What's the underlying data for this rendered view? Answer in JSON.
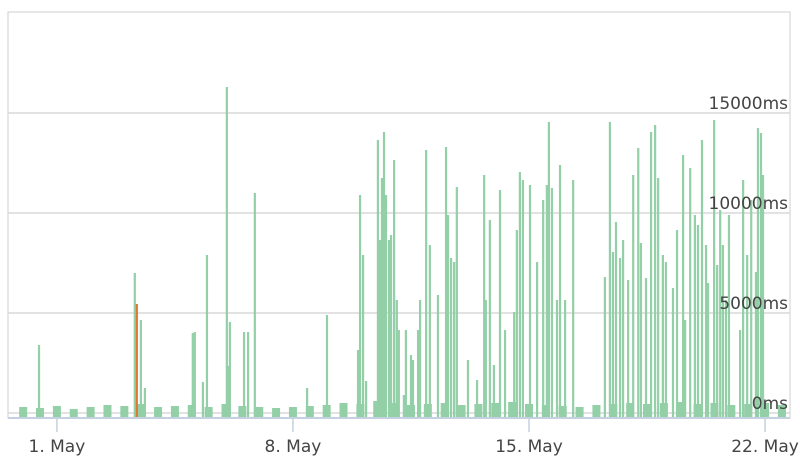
{
  "chart_data": {
    "type": "bar",
    "xlim": [
      -0.45,
      22.74
    ],
    "xticks": [
      {
        "value": 1,
        "label": "1. May"
      },
      {
        "value": 8,
        "label": "8. May"
      },
      {
        "value": 15,
        "label": "15. May"
      },
      {
        "value": 22,
        "label": "22. May"
      }
    ],
    "ylim": [
      0,
      20000
    ],
    "yticks": [
      {
        "value": 0,
        "label": "0ms"
      },
      {
        "value": 5000,
        "label": "5000ms"
      },
      {
        "value": 10000,
        "label": "10000ms"
      },
      {
        "value": 15000,
        "label": "15000ms"
      }
    ],
    "grid": true,
    "series": [
      {
        "color": "#93cfa7",
        "x": [
          0,
          0.5,
          1,
          1.5,
          2,
          2.5,
          3,
          3.5,
          4,
          4.5,
          5,
          5.5,
          6,
          6.5,
          7,
          7.5,
          8,
          8.5,
          9,
          9.5,
          10,
          10.5,
          11,
          11.5,
          12,
          12.5,
          13,
          13.5,
          14,
          14.5,
          15,
          15.5,
          16,
          16.5,
          17,
          17.5,
          18,
          18.5,
          19,
          19.5,
          20,
          20.5,
          21,
          21.5,
          22,
          22.5
        ],
        "values": [
          300,
          250,
          350,
          200,
          300,
          400,
          350,
          450,
          300,
          350,
          400,
          300,
          450,
          350,
          300,
          250,
          300,
          350,
          400,
          500,
          450,
          600,
          500,
          400,
          450,
          500,
          400,
          450,
          500,
          550,
          450,
          400,
          350,
          300,
          400,
          450,
          500,
          450,
          500,
          550,
          450,
          500,
          400,
          450,
          500,
          400
        ]
      },
      {
        "color": "#93cfa7",
        "x": [
          0.47,
          3.31,
          3.49,
          3.61,
          5.03,
          5.09,
          5.33,
          5.45,
          6.04,
          6.1,
          6.13,
          6.55,
          6.67,
          6.87,
          8.42,
          9.01,
          9.93,
          9.99,
          10.08,
          10.17,
          10.52,
          10.58,
          10.64,
          10.7,
          10.76,
          10.85,
          10.91,
          11.0,
          11.08,
          11.14,
          11.29,
          11.35,
          11.5,
          11.56,
          11.71,
          11.77,
          11.95,
          12.06,
          12.3,
          12.54,
          12.6,
          12.69,
          12.78,
          12.86,
          13.19,
          13.46,
          13.67,
          13.72,
          13.84,
          13.96,
          14.14,
          14.29,
          14.56,
          14.64,
          14.73,
          14.82,
          15.03,
          15.24,
          15.42,
          15.53,
          15.59,
          15.68,
          15.83,
          15.92,
          16.07,
          16.31,
          17.25,
          17.4,
          17.49,
          17.58,
          17.7,
          17.79,
          17.94,
          18.09,
          18.24,
          18.32,
          18.47,
          18.62,
          18.74,
          18.83,
          18.97,
          19.06,
          19.27,
          19.39,
          19.57,
          19.63,
          19.78,
          19.92,
          20.01,
          20.13,
          20.25,
          20.31,
          20.49,
          20.58,
          20.67,
          20.75,
          20.84,
          20.93,
          21.26,
          21.35,
          21.47,
          21.59,
          21.73,
          21.79,
          21.88,
          21.94
        ],
        "values": [
          3400,
          7000,
          4650,
          1250,
          4000,
          4050,
          1550,
          7900,
          16300,
          2350,
          4550,
          4050,
          4050,
          11000,
          1250,
          4900,
          3150,
          10900,
          7900,
          1600,
          13650,
          8650,
          11750,
          14050,
          10900,
          8650,
          8900,
          12650,
          5650,
          4150,
          900,
          4150,
          2900,
          2650,
          4150,
          5650,
          13150,
          8400,
          5900,
          13300,
          9900,
          7750,
          7550,
          11300,
          2650,
          1650,
          11900,
          5650,
          9650,
          2400,
          11150,
          4150,
          5050,
          9150,
          12050,
          11650,
          11400,
          7550,
          10650,
          11400,
          14550,
          11250,
          5650,
          12400,
          5650,
          11650,
          6800,
          14550,
          8050,
          9550,
          7750,
          8650,
          6650,
          11900,
          13250,
          8500,
          6750,
          14050,
          14400,
          11750,
          7900,
          7550,
          6250,
          9150,
          12900,
          4650,
          12250,
          9900,
          9400,
          13650,
          8400,
          6500,
          14650,
          7400,
          10150,
          8400,
          5650,
          9900,
          4150,
          11650,
          7900,
          10650,
          7050,
          14250,
          14000,
          11900
        ]
      },
      {
        "color": "#e0782f",
        "x": [
          3.37
        ],
        "values": [
          5450
        ]
      }
    ]
  }
}
